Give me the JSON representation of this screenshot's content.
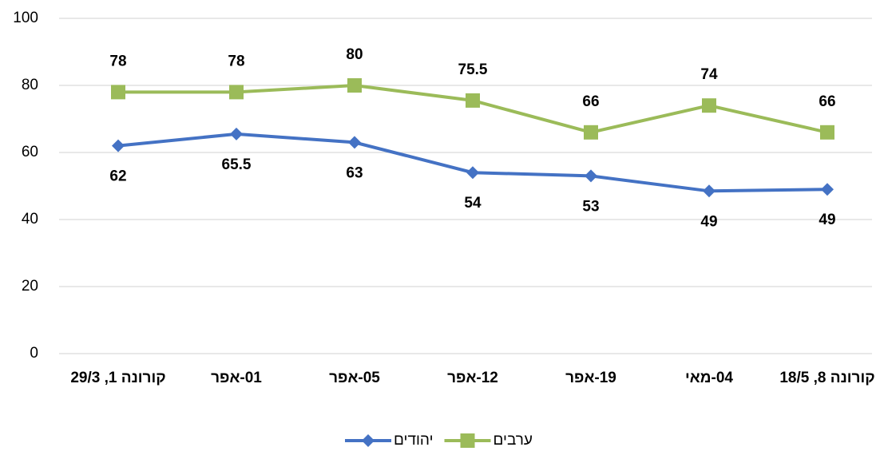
{
  "chart_data": {
    "type": "line",
    "categories": [
      "קורונה 1, 29/3",
      "01-אפר",
      "05-אפר",
      "12-אפר",
      "19-אפר",
      "04-מאי",
      "קורונה 8, 18/5"
    ],
    "series": [
      {
        "name": "יהודים",
        "color": "#4472c4",
        "marker": "diamond",
        "values": [
          62,
          65.5,
          63,
          54,
          53,
          48.5,
          49
        ],
        "value_labels": [
          "62",
          "65.5",
          "63",
          "54",
          "53",
          "49",
          "49"
        ],
        "label_position": "below"
      },
      {
        "name": "ערבים",
        "color": "#9bbb59",
        "marker": "square",
        "values": [
          78,
          78,
          80,
          75.5,
          66,
          74,
          66
        ],
        "label_position": "above"
      }
    ],
    "ylim": [
      0,
      100
    ],
    "yticks": [
      0,
      20,
      40,
      60,
      80,
      100
    ],
    "grid": true,
    "legend": "bottom"
  }
}
